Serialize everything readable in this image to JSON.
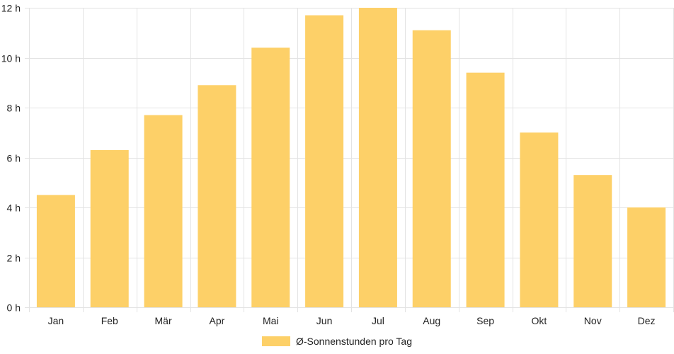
{
  "chart_data": {
    "type": "bar",
    "categories": [
      "Jan",
      "Feb",
      "Mär",
      "Apr",
      "Mai",
      "Jun",
      "Jul",
      "Aug",
      "Sep",
      "Okt",
      "Nov",
      "Dez"
    ],
    "series": [
      {
        "name": "Ø-Sonnenstunden pro Tag",
        "values": [
          4.5,
          6.3,
          7.7,
          8.9,
          10.4,
          11.7,
          12.0,
          11.1,
          9.4,
          7.0,
          5.3,
          4.0
        ]
      }
    ],
    "ylim": [
      0,
      12
    ],
    "y_ticks": [
      0,
      2,
      4,
      6,
      8,
      10,
      12
    ],
    "y_tick_suffix": " h",
    "grid": true,
    "legend_position": "bottom"
  },
  "colors": {
    "bar_fill": "#FDD068",
    "grid": "#e3e3e3",
    "text": "#222222"
  }
}
